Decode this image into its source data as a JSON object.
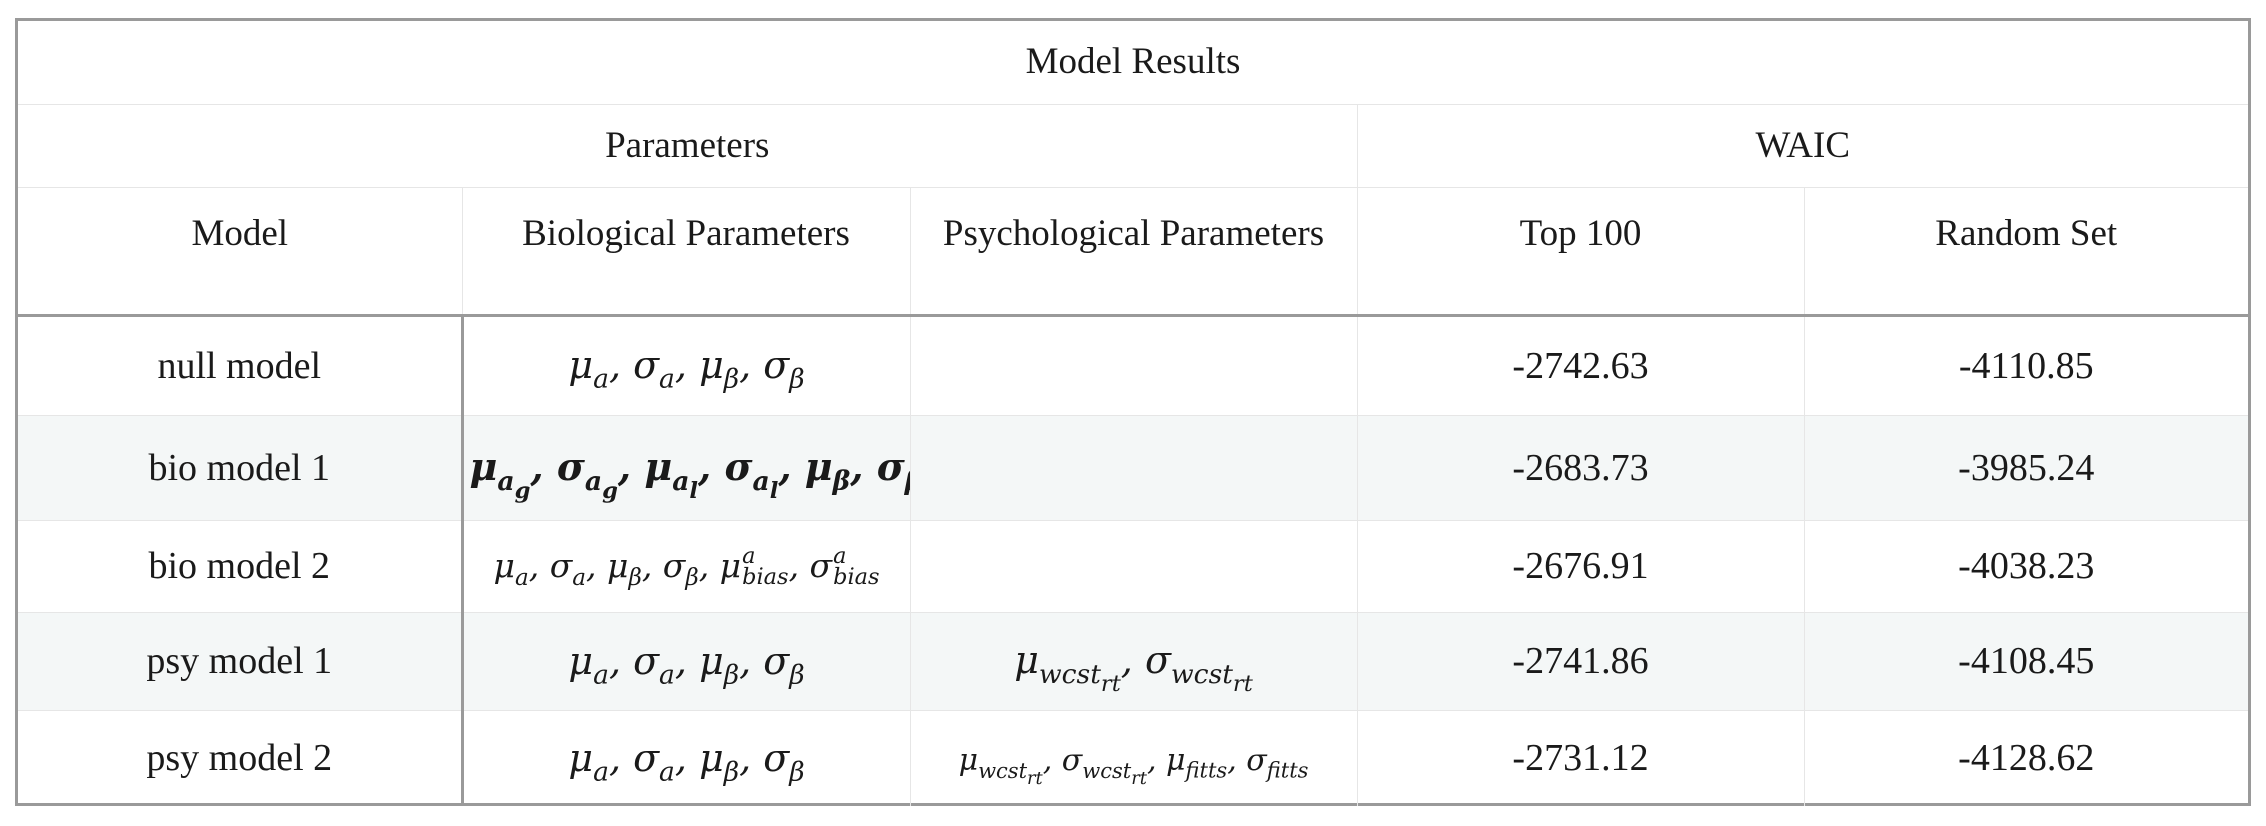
{
  "table": {
    "title": "Model Results",
    "group_parameters": "Parameters",
    "group_waic": "WAIC",
    "col_model": "Model",
    "col_bio": "Biological Parameters",
    "col_psy": "Psychological Parameters",
    "col_top100": "Top 100",
    "col_random": "Random Set",
    "rows": [
      {
        "model": "null model",
        "bio": "μa, σa, μβ, σβ",
        "psy": "",
        "top100": "-2742.63",
        "random": "-4110.85"
      },
      {
        "model": "bio model 1",
        "bio": "μag, σag, μal, σal, μβ, σβ",
        "psy": "",
        "top100": "-2683.73",
        "random": "-3985.24"
      },
      {
        "model": "bio model 2",
        "bio": "μa, σa, μβ, σβ, μ^a_bias, σ^a_bias",
        "psy": "",
        "top100": "-2676.91",
        "random": "-4038.23"
      },
      {
        "model": "psy model 1",
        "bio": "μa, σa, μβ, σβ",
        "psy": "μwcst_rt, σwcst_rt",
        "top100": "-2741.86",
        "random": "-4108.45"
      },
      {
        "model": "psy model 2",
        "bio": "μa, σa, μβ, σβ",
        "psy": "μwcst_rt, σwcst_rt, μfitts, σfitts",
        "top100": "-2731.12",
        "random": "-4128.62"
      }
    ]
  }
}
